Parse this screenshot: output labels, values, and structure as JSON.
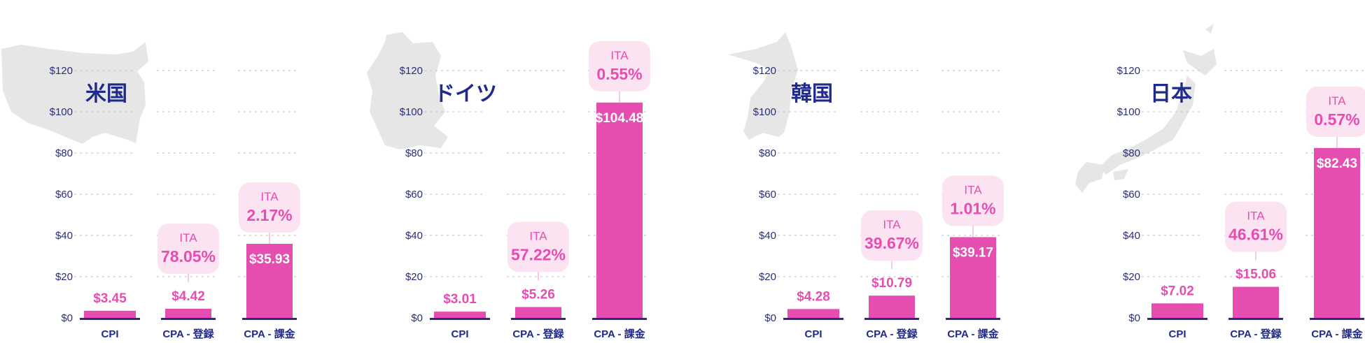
{
  "chart_data": [
    {
      "type": "bar",
      "title": "米国",
      "map_icon": "usa-map-icon",
      "categories": [
        "CPI",
        "CPA - 登録",
        "CPA - 課金"
      ],
      "values": [
        3.45,
        4.42,
        35.93
      ],
      "value_labels": [
        "$3.45",
        "$4.42",
        "$35.93"
      ],
      "ita": [
        null,
        "78.05%",
        "2.17%"
      ],
      "ita_label": "ITA",
      "yticks": [
        "$0",
        "$20",
        "$40",
        "$60",
        "$80",
        "$100",
        "$120"
      ],
      "ylim": [
        0,
        120
      ]
    },
    {
      "type": "bar",
      "title": "ドイツ",
      "map_icon": "germany-map-icon",
      "categories": [
        "CPI",
        "CPA - 登録",
        "CPA - 課金"
      ],
      "values": [
        3.01,
        5.26,
        104.48
      ],
      "value_labels": [
        "$3.01",
        "$5.26",
        "$104.48"
      ],
      "ita": [
        null,
        "57.22%",
        "0.55%"
      ],
      "ita_label": "ITA",
      "yticks": [
        "$0",
        "$20",
        "$40",
        "$60",
        "$80",
        "$100",
        "$120"
      ],
      "ylim": [
        0,
        120
      ]
    },
    {
      "type": "bar",
      "title": "韓国",
      "map_icon": "korea-map-icon",
      "categories": [
        "CPI",
        "CPA - 登録",
        "CPA - 課金"
      ],
      "values": [
        4.28,
        10.79,
        39.17
      ],
      "value_labels": [
        "$4.28",
        "$10.79",
        "$39.17"
      ],
      "ita": [
        null,
        "39.67%",
        "1.01%"
      ],
      "ita_label": "ITA",
      "yticks": [
        "$0",
        "$20",
        "$40",
        "$60",
        "$80",
        "$100",
        "$120"
      ],
      "ylim": [
        0,
        120
      ]
    },
    {
      "type": "bar",
      "title": "日本",
      "map_icon": "japan-map-icon",
      "categories": [
        "CPI",
        "CPA - 登録",
        "CPA - 課金"
      ],
      "values": [
        7.02,
        15.06,
        82.43
      ],
      "value_labels": [
        "$7.02",
        "$15.06",
        "$82.43"
      ],
      "ita": [
        null,
        "46.61%",
        "0.57%"
      ],
      "ita_label": "ITA",
      "yticks": [
        "$0",
        "$20",
        "$40",
        "$60",
        "$80",
        "$100",
        "$120"
      ],
      "ylim": [
        0,
        120
      ]
    }
  ],
  "colors": {
    "bar": "#e64db0",
    "baseline": "#2d2a8c",
    "axis_text": "#2a2e7a",
    "title": "#1f2a8a",
    "ita_bubble": "#fbe3f1",
    "map": "#e6e6e6"
  }
}
